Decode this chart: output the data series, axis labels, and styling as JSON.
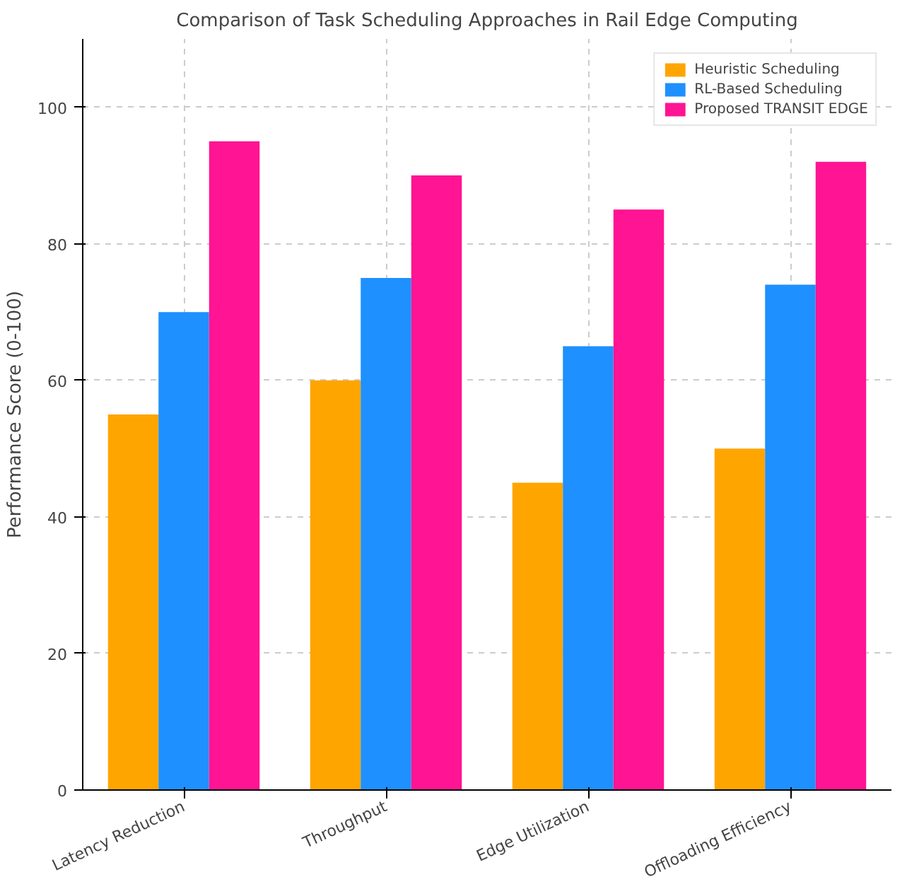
{
  "chart_data": {
    "type": "bar",
    "title": "Comparison of Task Scheduling Approaches in Rail Edge Computing",
    "ylabel": "Performance Score (0-100)",
    "categories": [
      "Latency Reduction",
      "Throughput",
      "Edge Utilization",
      "Offloading Efficiency"
    ],
    "series": [
      {
        "name": "Heuristic Scheduling",
        "color": "#ffa500",
        "values": [
          55,
          60,
          45,
          50
        ]
      },
      {
        "name": "RL-Based Scheduling",
        "color": "#1e90ff",
        "values": [
          70,
          75,
          65,
          74
        ]
      },
      {
        "name": "Proposed TRANSIT EDGE",
        "color": "#ff1493",
        "values": [
          95,
          90,
          85,
          92
        ]
      }
    ],
    "ylim": [
      0,
      110
    ],
    "yticks": [
      0,
      20,
      40,
      60,
      80,
      100
    ],
    "grid": true,
    "legend": "top right"
  }
}
